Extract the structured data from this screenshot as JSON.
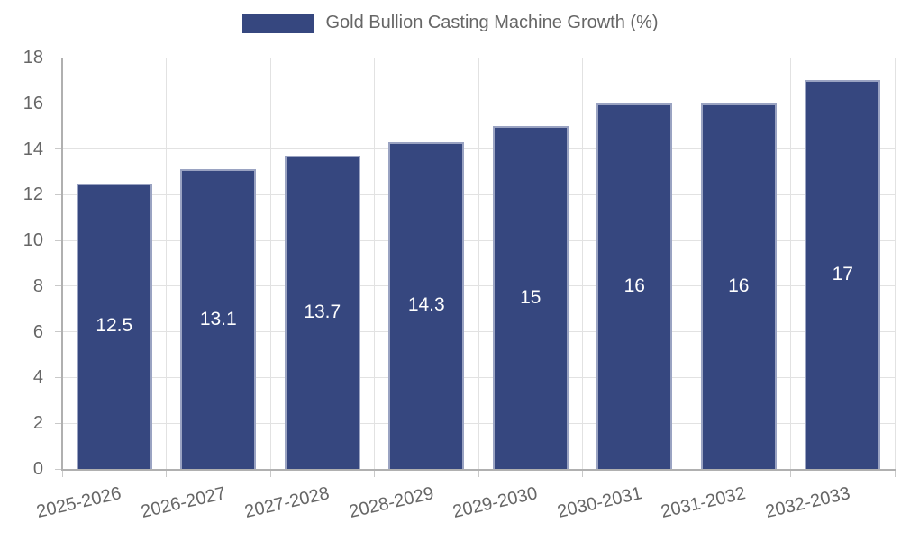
{
  "legend": {
    "label": "Gold Bullion Casting Machine Growth (%)"
  },
  "chart_data": {
    "type": "bar",
    "title": "Gold Bullion Casting Machine Growth (%)",
    "categories": [
      "2025-2026",
      "2026-2027",
      "2027-2028",
      "2028-2029",
      "2029-2030",
      "2030-2031",
      "2031-2032",
      "2032-2033"
    ],
    "values": [
      12.5,
      13.1,
      13.7,
      14.3,
      15,
      16,
      16,
      17
    ],
    "value_labels": [
      "12.5",
      "13.1",
      "13.7",
      "14.3",
      "15",
      "16",
      "16",
      "17"
    ],
    "xlabel": "",
    "ylabel": "",
    "ylim": [
      0,
      18
    ],
    "yticks": [
      0,
      2,
      4,
      6,
      8,
      10,
      12,
      14,
      16,
      18
    ],
    "grid": true,
    "legend_position": "top",
    "colors": {
      "bar_fill": "#36477f",
      "bar_border": "#9aa3c2",
      "grid": "#e2e2e2",
      "axis": "#b0b0b0",
      "tick": "#c9c9c9",
      "text": "#666666",
      "value_label": "#ffffff",
      "background": "#ffffff"
    }
  }
}
